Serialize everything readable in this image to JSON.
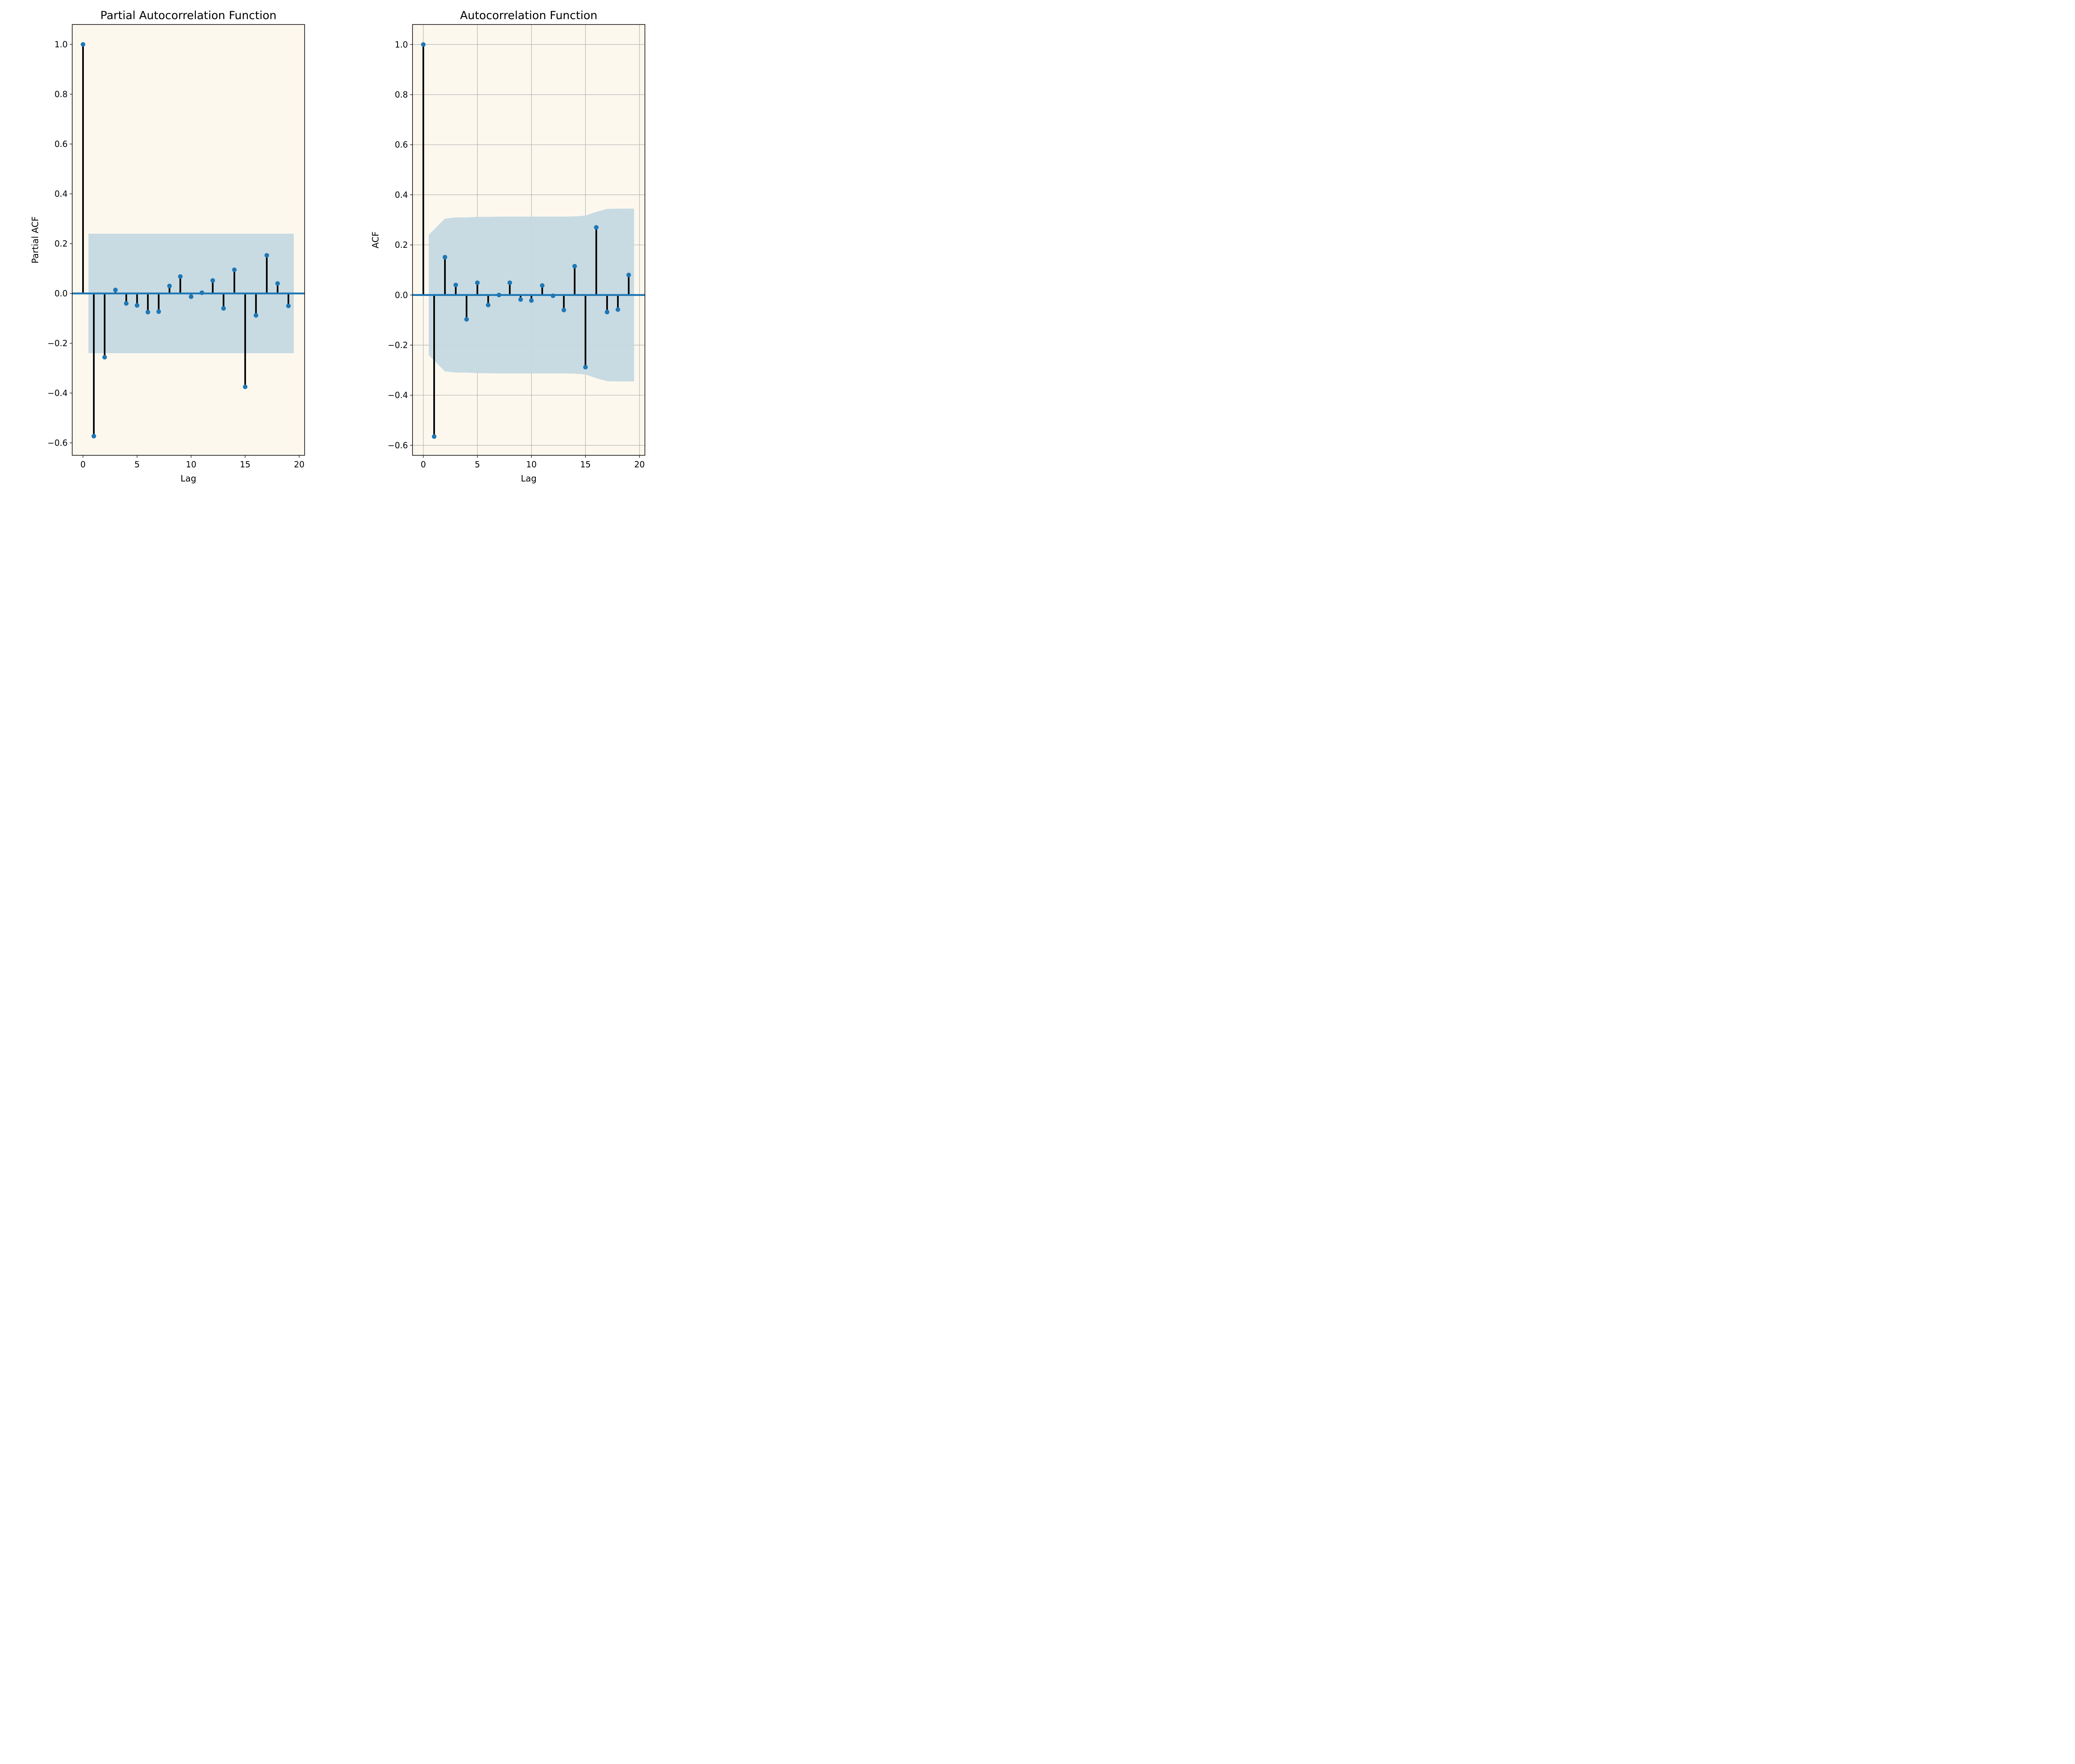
{
  "chart_data": [
    {
      "type": "stem",
      "title": "Partial Autocorrelation Function",
      "xlabel": "Lag",
      "ylabel": "Partial ACF",
      "xlim": [
        -1,
        20.5
      ],
      "ylim": [
        -0.65,
        1.08
      ],
      "xticks": [
        0,
        5,
        10,
        15,
        20
      ],
      "xtick_labels": [
        "0",
        "5",
        "10",
        "15",
        "20"
      ],
      "yticks": [
        -0.6,
        -0.4,
        -0.2,
        0.0,
        0.2,
        0.4,
        0.6,
        0.8,
        1.0
      ],
      "ytick_labels": [
        "−0.6",
        "−0.4",
        "−0.2",
        "0.0",
        "0.2",
        "0.4",
        "0.6",
        "0.8",
        "1.0"
      ],
      "grid": false,
      "background_color": "#fdf8ee",
      "stem_color": "#000000",
      "marker_color": "#1f77b4",
      "zero_line_color": "#1f77b4",
      "confidence_band_color": "#c5d9e1",
      "confidence_band": {
        "x": [
          0.5,
          19.5
        ],
        "upper": [
          0.24,
          0.24
        ],
        "lower": [
          -0.24,
          -0.24
        ]
      },
      "lags": [
        0,
        1,
        2,
        3,
        4,
        5,
        6,
        7,
        8,
        9,
        10,
        11,
        12,
        13,
        14,
        15,
        16,
        17,
        18,
        19
      ],
      "values": [
        1.0,
        -0.573,
        -0.256,
        0.014,
        -0.04,
        -0.048,
        -0.075,
        -0.073,
        0.03,
        0.068,
        -0.013,
        0.003,
        0.052,
        -0.06,
        0.095,
        -0.375,
        -0.088,
        0.153,
        0.04,
        -0.05
      ]
    },
    {
      "type": "stem",
      "title": "Autocorrelation Function",
      "xlabel": "Lag",
      "ylabel": "ACF",
      "xlim": [
        -1,
        20.5
      ],
      "ylim": [
        -0.64,
        1.08
      ],
      "xticks": [
        0,
        5,
        10,
        15,
        20
      ],
      "xtick_labels": [
        "0",
        "5",
        "10",
        "15",
        "20"
      ],
      "yticks": [
        -0.6,
        -0.4,
        -0.2,
        0.0,
        0.2,
        0.4,
        0.6,
        0.8,
        1.0
      ],
      "ytick_labels": [
        "−0.6",
        "−0.4",
        "−0.2",
        "0.0",
        "0.2",
        "0.4",
        "0.6",
        "0.8",
        "1.0"
      ],
      "grid": true,
      "background_color": "#fdf8ee",
      "stem_color": "#000000",
      "marker_color": "#1f77b4",
      "zero_line_color": "#1f77b4",
      "confidence_band_color": "#c5d9e1",
      "confidence_band": {
        "x": [
          0.5,
          2.0,
          3.0,
          4.0,
          5.0,
          6.0,
          7.0,
          8.0,
          9.0,
          10.0,
          11.0,
          12.0,
          13.0,
          14.0,
          15.0,
          16.0,
          17.0,
          18.0,
          19.0,
          19.5
        ],
        "upper": [
          0.24,
          0.305,
          0.31,
          0.31,
          0.312,
          0.312,
          0.313,
          0.313,
          0.313,
          0.313,
          0.313,
          0.313,
          0.313,
          0.314,
          0.317,
          0.332,
          0.344,
          0.345,
          0.345,
          0.345
        ],
        "lower": [
          -0.24,
          -0.305,
          -0.31,
          -0.31,
          -0.312,
          -0.312,
          -0.313,
          -0.313,
          -0.313,
          -0.313,
          -0.313,
          -0.313,
          -0.313,
          -0.314,
          -0.317,
          -0.332,
          -0.344,
          -0.345,
          -0.345,
          -0.345
        ]
      },
      "lags": [
        0,
        1,
        2,
        3,
        4,
        5,
        6,
        7,
        8,
        9,
        10,
        11,
        12,
        13,
        14,
        15,
        16,
        17,
        18,
        19
      ],
      "values": [
        1.0,
        -0.565,
        0.151,
        0.04,
        -0.097,
        0.049,
        -0.04,
        0.0,
        0.049,
        -0.018,
        -0.022,
        0.038,
        -0.003,
        -0.06,
        0.115,
        -0.288,
        0.27,
        -0.068,
        -0.058,
        0.08
      ]
    }
  ]
}
